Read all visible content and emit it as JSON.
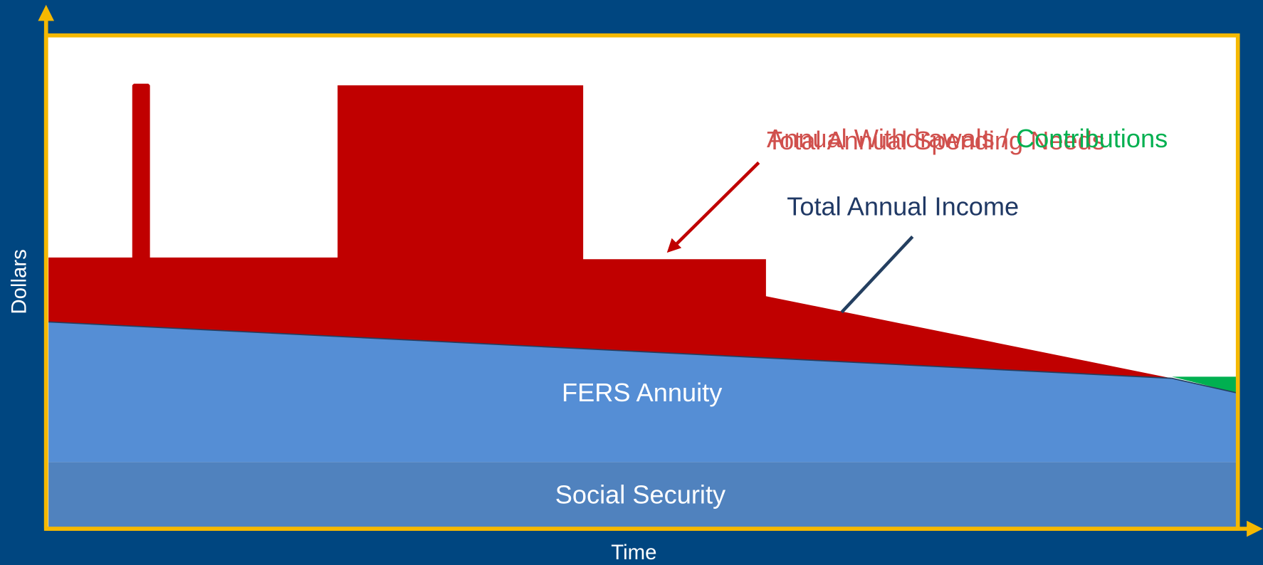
{
  "axes": {
    "y_label": "Dollars",
    "x_label": "Time"
  },
  "annotations": {
    "spending": "Total Annual Spending Needs",
    "withdrawals": "Annual Withdrawals / ",
    "contributions": "Contributions",
    "income": "Total Annual Income"
  },
  "regions": {
    "fers": "FERS Annuity",
    "social_security": "Social Security"
  }
}
